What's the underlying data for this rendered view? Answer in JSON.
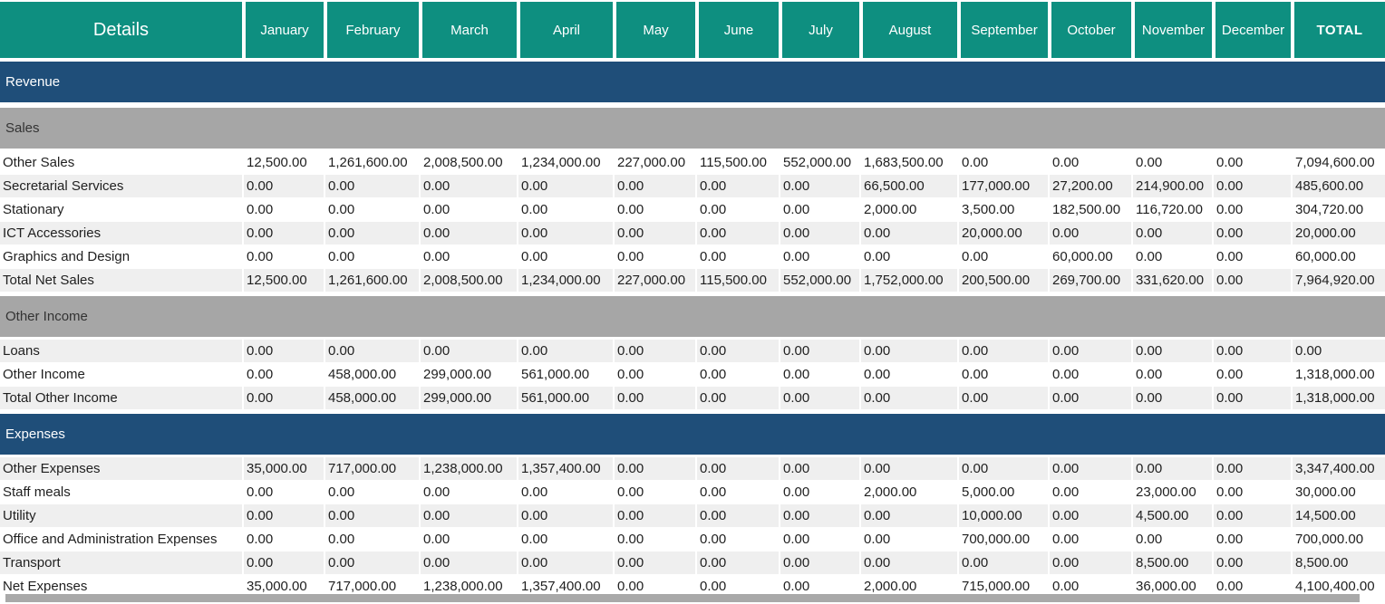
{
  "table": {
    "header": {
      "details_label": "Details",
      "months": [
        "January",
        "February",
        "March",
        "April",
        "May",
        "June",
        "July",
        "August",
        "September",
        "October",
        "November",
        "December"
      ],
      "total_label": "TOTAL"
    },
    "sections": [
      {
        "type": "major",
        "label": "Revenue",
        "rows": []
      },
      {
        "type": "sub",
        "label": "Sales",
        "rows": [
          {
            "label": "Other Sales",
            "values": [
              "12,500.00",
              "1,261,600.00",
              "2,008,500.00",
              "1,234,000.00",
              "227,000.00",
              "115,500.00",
              "552,000.00",
              "1,683,500.00",
              "0.00",
              "0.00",
              "0.00",
              "0.00"
            ],
            "total": "7,094,600.00"
          },
          {
            "label": "Secretarial Services",
            "values": [
              "0.00",
              "0.00",
              "0.00",
              "0.00",
              "0.00",
              "0.00",
              "0.00",
              "66,500.00",
              "177,000.00",
              "27,200.00",
              "214,900.00",
              "0.00"
            ],
            "total": "485,600.00"
          },
          {
            "label": "Stationary",
            "values": [
              "0.00",
              "0.00",
              "0.00",
              "0.00",
              "0.00",
              "0.00",
              "0.00",
              "2,000.00",
              "3,500.00",
              "182,500.00",
              "116,720.00",
              "0.00"
            ],
            "total": "304,720.00"
          },
          {
            "label": "ICT Accessories",
            "values": [
              "0.00",
              "0.00",
              "0.00",
              "0.00",
              "0.00",
              "0.00",
              "0.00",
              "0.00",
              "20,000.00",
              "0.00",
              "0.00",
              "0.00"
            ],
            "total": "20,000.00"
          },
          {
            "label": "Graphics and Design",
            "values": [
              "0.00",
              "0.00",
              "0.00",
              "0.00",
              "0.00",
              "0.00",
              "0.00",
              "0.00",
              "0.00",
              "60,000.00",
              "0.00",
              "0.00"
            ],
            "total": "60,000.00"
          },
          {
            "label": "Total Net Sales",
            "values": [
              "12,500.00",
              "1,261,600.00",
              "2,008,500.00",
              "1,234,000.00",
              "227,000.00",
              "115,500.00",
              "552,000.00",
              "1,752,000.00",
              "200,500.00",
              "269,700.00",
              "331,620.00",
              "0.00"
            ],
            "total": "7,964,920.00"
          }
        ]
      },
      {
        "type": "sub",
        "label": "Other Income",
        "rows": [
          {
            "label": "Loans",
            "values": [
              "0.00",
              "0.00",
              "0.00",
              "0.00",
              "0.00",
              "0.00",
              "0.00",
              "0.00",
              "0.00",
              "0.00",
              "0.00",
              "0.00"
            ],
            "total": "0.00"
          },
          {
            "label": "Other Income",
            "values": [
              "0.00",
              "458,000.00",
              "299,000.00",
              "561,000.00",
              "0.00",
              "0.00",
              "0.00",
              "0.00",
              "0.00",
              "0.00",
              "0.00",
              "0.00"
            ],
            "total": "1,318,000.00"
          },
          {
            "label": "Total Other Income",
            "values": [
              "0.00",
              "458,000.00",
              "299,000.00",
              "561,000.00",
              "0.00",
              "0.00",
              "0.00",
              "0.00",
              "0.00",
              "0.00",
              "0.00",
              "0.00"
            ],
            "total": "1,318,000.00"
          }
        ]
      },
      {
        "type": "major",
        "label": "Expenses",
        "rows": [
          {
            "label": "Other Expenses",
            "values": [
              "35,000.00",
              "717,000.00",
              "1,238,000.00",
              "1,357,400.00",
              "0.00",
              "0.00",
              "0.00",
              "0.00",
              "0.00",
              "0.00",
              "0.00",
              "0.00"
            ],
            "total": "3,347,400.00"
          },
          {
            "label": "Staff meals",
            "values": [
              "0.00",
              "0.00",
              "0.00",
              "0.00",
              "0.00",
              "0.00",
              "0.00",
              "2,000.00",
              "5,000.00",
              "0.00",
              "23,000.00",
              "0.00"
            ],
            "total": "30,000.00"
          },
          {
            "label": "Utility",
            "values": [
              "0.00",
              "0.00",
              "0.00",
              "0.00",
              "0.00",
              "0.00",
              "0.00",
              "0.00",
              "10,000.00",
              "0.00",
              "4,500.00",
              "0.00"
            ],
            "total": "14,500.00"
          },
          {
            "label": "Office and Administration Expenses",
            "values": [
              "0.00",
              "0.00",
              "0.00",
              "0.00",
              "0.00",
              "0.00",
              "0.00",
              "0.00",
              "700,000.00",
              "0.00",
              "0.00",
              "0.00"
            ],
            "total": "700,000.00"
          },
          {
            "label": "Transport",
            "values": [
              "0.00",
              "0.00",
              "0.00",
              "0.00",
              "0.00",
              "0.00",
              "0.00",
              "0.00",
              "0.00",
              "0.00",
              "8,500.00",
              "0.00"
            ],
            "total": "8,500.00"
          },
          {
            "label": "Net Expenses",
            "values": [
              "35,000.00",
              "717,000.00",
              "1,238,000.00",
              "1,357,400.00",
              "0.00",
              "0.00",
              "0.00",
              "2,000.00",
              "715,000.00",
              "0.00",
              "36,000.00",
              "0.00"
            ],
            "total": "4,100,400.00"
          }
        ]
      }
    ]
  },
  "colors": {
    "header_teal": "#0E8F80",
    "section_blue": "#1F4E79",
    "section_gray": "#A6A6A6",
    "row_shade": "#EFEFEF",
    "scrollbar_thumb": "#A9A9A9"
  },
  "scrollbar": {
    "orientation": "horizontal"
  }
}
